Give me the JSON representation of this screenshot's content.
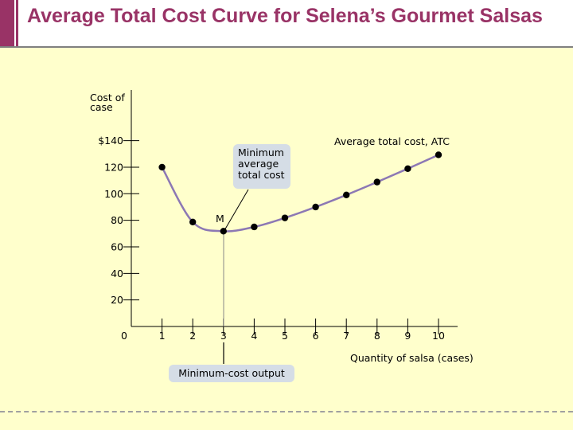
{
  "title": "Average Total Cost Curve for Selena’s Gourmet Salsas",
  "colors": {
    "title": "#993366",
    "curve": "#8c78b4",
    "background": "#ffffcc",
    "callout": "#d5dde6"
  },
  "callouts": {
    "minimum_atc": [
      "Minimum",
      "average",
      "total cost"
    ],
    "minimum_output": "Minimum-cost output"
  },
  "chart_data": {
    "type": "line",
    "title": "",
    "ylabel_lines": [
      "Cost of",
      "case"
    ],
    "xlabel": "Quantity of salsa (cases)",
    "curve_label": "Average total cost, ATC",
    "point_label": "M",
    "origin_label": "0",
    "x_ticks": [
      1,
      2,
      3,
      4,
      5,
      6,
      7,
      8,
      9,
      10
    ],
    "y_ticks": [
      20,
      40,
      60,
      80,
      100,
      120,
      140
    ],
    "y_tick_labels": [
      "20",
      "40",
      "60",
      "80",
      "100",
      "120",
      "$140"
    ],
    "xlim": [
      0,
      10.5
    ],
    "ylim": [
      0,
      160
    ],
    "minimum_point": {
      "x": 3,
      "y": 71.8
    },
    "series": [
      {
        "name": "Average total cost, ATC",
        "x": [
          1,
          2,
          3,
          4,
          5,
          6,
          7,
          8,
          9,
          10
        ],
        "y": [
          120,
          78.7,
          71.8,
          75,
          81.8,
          90,
          99.1,
          108.8,
          118.9,
          129.3
        ]
      }
    ]
  }
}
